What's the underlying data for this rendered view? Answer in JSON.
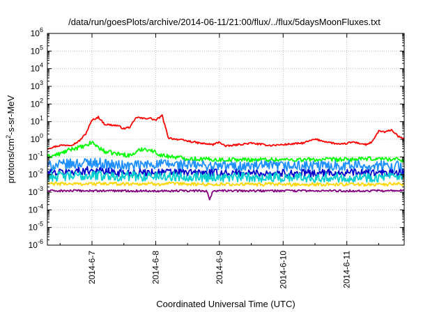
{
  "chart_data": {
    "type": "line",
    "title": "/data/run/goesPlots/archive/2014-06-11/21:00/flux/../flux/5daysMoonFluxes.txt",
    "xlabel": "Coordinated Universal Time (UTC)",
    "ylabel_parts": [
      "protons/cm",
      "2",
      "-s-sr-MeV"
    ],
    "yscale": "log",
    "ylim": [
      1e-06,
      1000000.0
    ],
    "xlim": [
      -0.7,
      4.9
    ],
    "grid": true,
    "y_ticks": [
      {
        "base": "10",
        "exp": "-6"
      },
      {
        "base": "10",
        "exp": "-5"
      },
      {
        "base": "10",
        "exp": "-4"
      },
      {
        "base": "10",
        "exp": "-3"
      },
      {
        "base": "10",
        "exp": "-2"
      },
      {
        "base": "10",
        "exp": "-1"
      },
      {
        "base": "10",
        "exp": "0"
      },
      {
        "base": "10",
        "exp": "1"
      },
      {
        "base": "10",
        "exp": "2"
      },
      {
        "base": "10",
        "exp": "3"
      },
      {
        "base": "10",
        "exp": "4"
      },
      {
        "base": "10",
        "exp": "5"
      },
      {
        "base": "10",
        "exp": "6"
      }
    ],
    "x_ticks": [
      {
        "x": 0,
        "label": "2014-6-7"
      },
      {
        "x": 1,
        "label": "2014-6-8"
      },
      {
        "x": 2,
        "label": "2014-6-9"
      },
      {
        "x": 3,
        "label": "2014-6-10"
      },
      {
        "x": 4,
        "label": "2014-6-11"
      }
    ],
    "series": [
      {
        "color": "#ff0000",
        "points": [
          [
            -0.7,
            0.3
          ],
          [
            -0.5,
            0.45
          ],
          [
            -0.3,
            0.5
          ],
          [
            -0.2,
            0.8
          ],
          [
            -0.1,
            2
          ],
          [
            0,
            12
          ],
          [
            0.1,
            18
          ],
          [
            0.2,
            7
          ],
          [
            0.4,
            6
          ],
          [
            0.5,
            4
          ],
          [
            0.6,
            5
          ],
          [
            0.7,
            18
          ],
          [
            0.8,
            15
          ],
          [
            0.9,
            16
          ],
          [
            1.0,
            12
          ],
          [
            1.1,
            22
          ],
          [
            1.2,
            1.2
          ],
          [
            1.5,
            0.8
          ],
          [
            1.7,
            0.6
          ],
          [
            1.9,
            0.5
          ],
          [
            2.0,
            0.7
          ],
          [
            2.1,
            0.4
          ],
          [
            2.3,
            0.5
          ],
          [
            2.5,
            0.6
          ],
          [
            2.8,
            0.45
          ],
          [
            3.0,
            0.5
          ],
          [
            3.3,
            0.6
          ],
          [
            3.5,
            1.0
          ],
          [
            3.7,
            0.7
          ],
          [
            3.9,
            0.5
          ],
          [
            4.1,
            0.7
          ],
          [
            4.3,
            0.5
          ],
          [
            4.4,
            0.7
          ],
          [
            4.5,
            3
          ],
          [
            4.6,
            2.5
          ],
          [
            4.7,
            3.5
          ],
          [
            4.8,
            1.5
          ],
          [
            4.9,
            1.0
          ]
        ]
      },
      {
        "color": "#00ff00",
        "points": [
          [
            -0.7,
            0.1
          ],
          [
            -0.5,
            0.15
          ],
          [
            -0.3,
            0.3
          ],
          [
            -0.1,
            0.4
          ],
          [
            0,
            0.7
          ],
          [
            0.1,
            0.35
          ],
          [
            0.2,
            0.2
          ],
          [
            0.4,
            0.15
          ],
          [
            0.6,
            0.12
          ],
          [
            0.8,
            0.3
          ],
          [
            0.9,
            0.25
          ],
          [
            1.0,
            0.18
          ],
          [
            1.1,
            0.12
          ],
          [
            1.3,
            0.1
          ],
          [
            1.5,
            0.08
          ],
          [
            2.0,
            0.07
          ],
          [
            2.5,
            0.07
          ],
          [
            3.0,
            0.07
          ],
          [
            3.5,
            0.07
          ],
          [
            4.0,
            0.07
          ],
          [
            4.5,
            0.08
          ],
          [
            4.9,
            0.07
          ]
        ]
      },
      {
        "color": "#1e90ff",
        "points": [
          [
            -0.7,
            0.03
          ],
          [
            -0.3,
            0.04
          ],
          [
            0,
            0.05
          ],
          [
            0.3,
            0.035
          ],
          [
            0.6,
            0.03
          ],
          [
            1.0,
            0.04
          ],
          [
            1.5,
            0.035
          ],
          [
            2.0,
            0.03
          ],
          [
            2.5,
            0.03
          ],
          [
            3.0,
            0.03
          ],
          [
            3.5,
            0.03
          ],
          [
            4.0,
            0.035
          ],
          [
            4.5,
            0.03
          ],
          [
            4.9,
            0.03
          ]
        ]
      },
      {
        "color": "#0000cd",
        "points": [
          [
            -0.7,
            0.012
          ],
          [
            -0.3,
            0.015
          ],
          [
            0,
            0.018
          ],
          [
            0.3,
            0.014
          ],
          [
            0.6,
            0.012
          ],
          [
            1.0,
            0.014
          ],
          [
            1.5,
            0.013
          ],
          [
            2.0,
            0.012
          ],
          [
            2.5,
            0.012
          ],
          [
            3.0,
            0.012
          ],
          [
            3.5,
            0.012
          ],
          [
            4.0,
            0.013
          ],
          [
            4.5,
            0.012
          ],
          [
            4.9,
            0.012
          ]
        ]
      },
      {
        "color": "#00ced1",
        "points": [
          [
            -0.7,
            0.008
          ],
          [
            -0.3,
            0.008
          ],
          [
            0,
            0.009
          ],
          [
            0.5,
            0.008
          ],
          [
            1.0,
            0.008
          ],
          [
            1.5,
            0.008
          ],
          [
            2.0,
            0.007
          ],
          [
            2.5,
            0.007
          ],
          [
            3.0,
            0.007
          ],
          [
            3.5,
            0.007
          ],
          [
            4.0,
            0.007
          ],
          [
            4.5,
            0.007
          ],
          [
            4.9,
            0.007
          ]
        ]
      },
      {
        "color": "#ffd700",
        "points": [
          [
            -0.7,
            0.003
          ],
          [
            0,
            0.003
          ],
          [
            1.0,
            0.003
          ],
          [
            2.0,
            0.0028
          ],
          [
            3.0,
            0.0028
          ],
          [
            4.0,
            0.0028
          ],
          [
            4.9,
            0.0028
          ]
        ]
      },
      {
        "color": "#800080",
        "points": [
          [
            -0.7,
            0.0012
          ],
          [
            0,
            0.0012
          ],
          [
            1.0,
            0.0012
          ],
          [
            1.8,
            0.0012
          ],
          [
            1.85,
            0.0004
          ],
          [
            1.9,
            0.0012
          ],
          [
            3.0,
            0.0012
          ],
          [
            4.0,
            0.0012
          ],
          [
            4.9,
            0.0012
          ]
        ]
      }
    ]
  }
}
